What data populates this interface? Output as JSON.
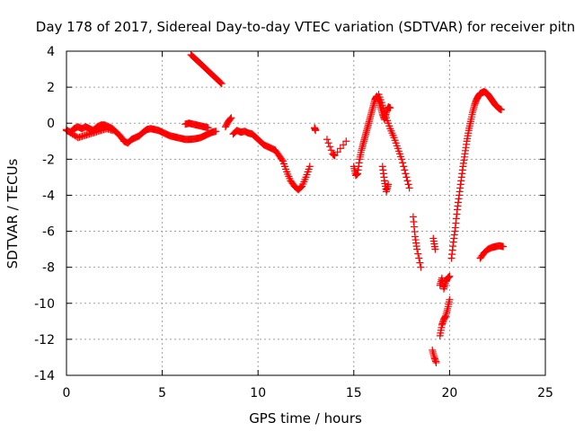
{
  "chart_data": {
    "type": "scatter",
    "title": "Day 178 of 2017, Sidereal Day-to-day VTEC variation (SDTVAR) for receiver pitn",
    "xlabel": "GPS time / hours",
    "ylabel": "SDTVAR / TECUs",
    "xlim": [
      0,
      25
    ],
    "ylim": [
      -14,
      4
    ],
    "xticks": [
      0,
      5,
      10,
      15,
      20,
      25
    ],
    "yticks": [
      -14,
      -12,
      -10,
      -8,
      -6,
      -4,
      -2,
      0,
      2,
      4
    ],
    "grid": true,
    "marker": "+",
    "color": "#ff0000",
    "series": [
      {
        "name": "SDTVAR",
        "segments": [
          {
            "x": [
              0.0,
              0.2,
              0.4,
              0.6,
              0.8,
              1.0,
              1.2,
              1.4,
              1.6,
              1.8,
              2.0,
              2.2,
              2.4,
              2.6,
              2.8,
              3.0,
              3.2,
              3.4,
              3.6,
              3.8,
              4.0,
              4.2,
              4.4,
              4.6,
              4.8,
              5.0,
              5.2,
              5.4,
              5.6,
              5.8,
              6.0,
              6.2,
              6.4,
              6.6,
              6.8,
              7.0,
              7.2,
              7.4,
              7.6,
              7.8
            ],
            "y": [
              -0.4,
              -0.5,
              -0.3,
              -0.2,
              -0.3,
              -0.2,
              -0.3,
              -0.4,
              -0.2,
              -0.1,
              -0.1,
              -0.2,
              -0.3,
              -0.5,
              -0.7,
              -1.0,
              -1.1,
              -0.9,
              -0.8,
              -0.7,
              -0.5,
              -0.35,
              -0.3,
              -0.35,
              -0.4,
              -0.5,
              -0.6,
              -0.7,
              -0.75,
              -0.8,
              -0.85,
              -0.9,
              -0.9,
              -0.88,
              -0.85,
              -0.8,
              -0.7,
              -0.6,
              -0.5,
              -0.45
            ]
          },
          {
            "x": [
              0.0,
              0.3,
              0.6,
              0.9,
              1.2,
              1.5,
              1.8,
              2.1,
              2.4
            ],
            "y": [
              -0.35,
              -0.6,
              -0.8,
              -0.7,
              -0.6,
              -0.5,
              -0.4,
              -0.3,
              -0.4
            ]
          },
          {
            "x": [
              6.2,
              6.4,
              6.6,
              6.8,
              7.0,
              7.2,
              7.4
            ],
            "y": [
              -0.05,
              0.0,
              -0.05,
              -0.1,
              -0.15,
              -0.2,
              -0.25
            ]
          },
          {
            "x": [
              6.5,
              6.7,
              6.9,
              7.1,
              7.3,
              7.5,
              7.7,
              7.9,
              8.1
            ],
            "y": [
              3.8,
              3.6,
              3.4,
              3.2,
              3.0,
              2.8,
              2.6,
              2.4,
              2.2
            ]
          },
          {
            "x": [
              8.3,
              8.45,
              8.6
            ],
            "y": [
              -0.2,
              0.1,
              0.3
            ]
          },
          {
            "x": [
              8.7,
              8.9,
              9.1,
              9.3,
              9.5,
              9.7,
              9.9,
              10.1,
              10.3,
              10.5,
              10.7,
              10.9,
              11.1,
              11.3,
              11.5,
              11.7,
              11.9,
              12.1,
              12.3,
              12.5,
              12.7
            ],
            "y": [
              -0.6,
              -0.4,
              -0.5,
              -0.45,
              -0.55,
              -0.6,
              -0.8,
              -1.0,
              -1.2,
              -1.3,
              -1.4,
              -1.5,
              -1.8,
              -2.1,
              -2.7,
              -3.2,
              -3.5,
              -3.7,
              -3.5,
              -3.0,
              -2.4
            ]
          },
          {
            "x": [
              12.95,
              13.0
            ],
            "y": [
              -0.25,
              -0.4
            ]
          },
          {
            "x": [
              13.6,
              13.9,
              14.0,
              14.6
            ],
            "y": [
              -0.9,
              -1.7,
              -1.8,
              -1.0
            ]
          },
          {
            "x": [
              15.0,
              15.1,
              15.2,
              15.3,
              15.4,
              15.5,
              15.6,
              15.7,
              15.8,
              15.9,
              16.0,
              16.1,
              16.2,
              16.3,
              16.4,
              16.5,
              16.6,
              16.7,
              16.8,
              16.9
            ],
            "y": [
              -2.4,
              -2.9,
              -2.8,
              -2.0,
              -1.5,
              -1.1,
              -0.7,
              -0.3,
              0.1,
              0.5,
              0.9,
              1.3,
              1.5,
              1.3,
              0.9,
              0.5,
              0.2,
              0.6,
              0.9,
              0.85
            ]
          },
          {
            "x": [
              16.3,
              16.5,
              16.7,
              16.9,
              17.1,
              17.3,
              17.5,
              17.7,
              17.9
            ],
            "y": [
              1.6,
              1.0,
              0.3,
              -0.3,
              -0.8,
              -1.4,
              -2.0,
              -2.8,
              -3.6
            ]
          },
          {
            "x": [
              16.5,
              16.6,
              16.7,
              16.8
            ],
            "y": [
              -2.4,
              -3.2,
              -3.8,
              -3.4
            ]
          },
          {
            "x": [
              18.1,
              18.2,
              18.3,
              18.5
            ],
            "y": [
              -5.2,
              -6.3,
              -7.0,
              -8.0
            ]
          },
          {
            "x": [
              19.1,
              19.2,
              19.3
            ],
            "y": [
              -12.6,
              -13.0,
              -13.3
            ]
          },
          {
            "x": [
              19.15,
              19.25
            ],
            "y": [
              -6.4,
              -7.0
            ]
          },
          {
            "x": [
              19.5,
              19.6,
              19.7,
              19.8,
              19.9,
              20.0
            ],
            "y": [
              -9.0,
              -8.6,
              -9.2,
              -8.8,
              -8.6,
              -8.5
            ]
          },
          {
            "x": [
              19.5,
              19.6,
              19.7,
              19.8,
              19.9,
              20.0
            ],
            "y": [
              -11.8,
              -11.2,
              -10.9,
              -10.7,
              -10.3,
              -9.8
            ]
          },
          {
            "x": [
              20.1,
              20.2,
              20.3,
              20.4,
              20.5,
              20.6,
              20.7,
              20.8,
              20.9,
              21.0,
              21.1,
              21.2,
              21.3,
              21.4,
              21.5,
              21.6,
              21.7,
              21.8,
              21.9,
              22.0,
              22.1,
              22.2,
              22.3,
              22.4,
              22.5,
              22.6,
              22.7
            ],
            "y": [
              -7.5,
              -6.6,
              -5.8,
              -4.8,
              -4.0,
              -3.2,
              -2.4,
              -1.7,
              -1.0,
              -0.4,
              0.1,
              0.6,
              1.0,
              1.3,
              1.5,
              1.65,
              1.7,
              1.75,
              1.7,
              1.6,
              1.45,
              1.3,
              1.15,
              1.0,
              0.9,
              0.8,
              0.75
            ]
          },
          {
            "x": [
              21.6,
              21.8,
              22.0,
              22.2,
              22.4,
              22.6,
              22.8
            ],
            "y": [
              -7.5,
              -7.2,
              -7.0,
              -6.9,
              -6.85,
              -6.8,
              -6.85
            ]
          }
        ]
      }
    ]
  }
}
